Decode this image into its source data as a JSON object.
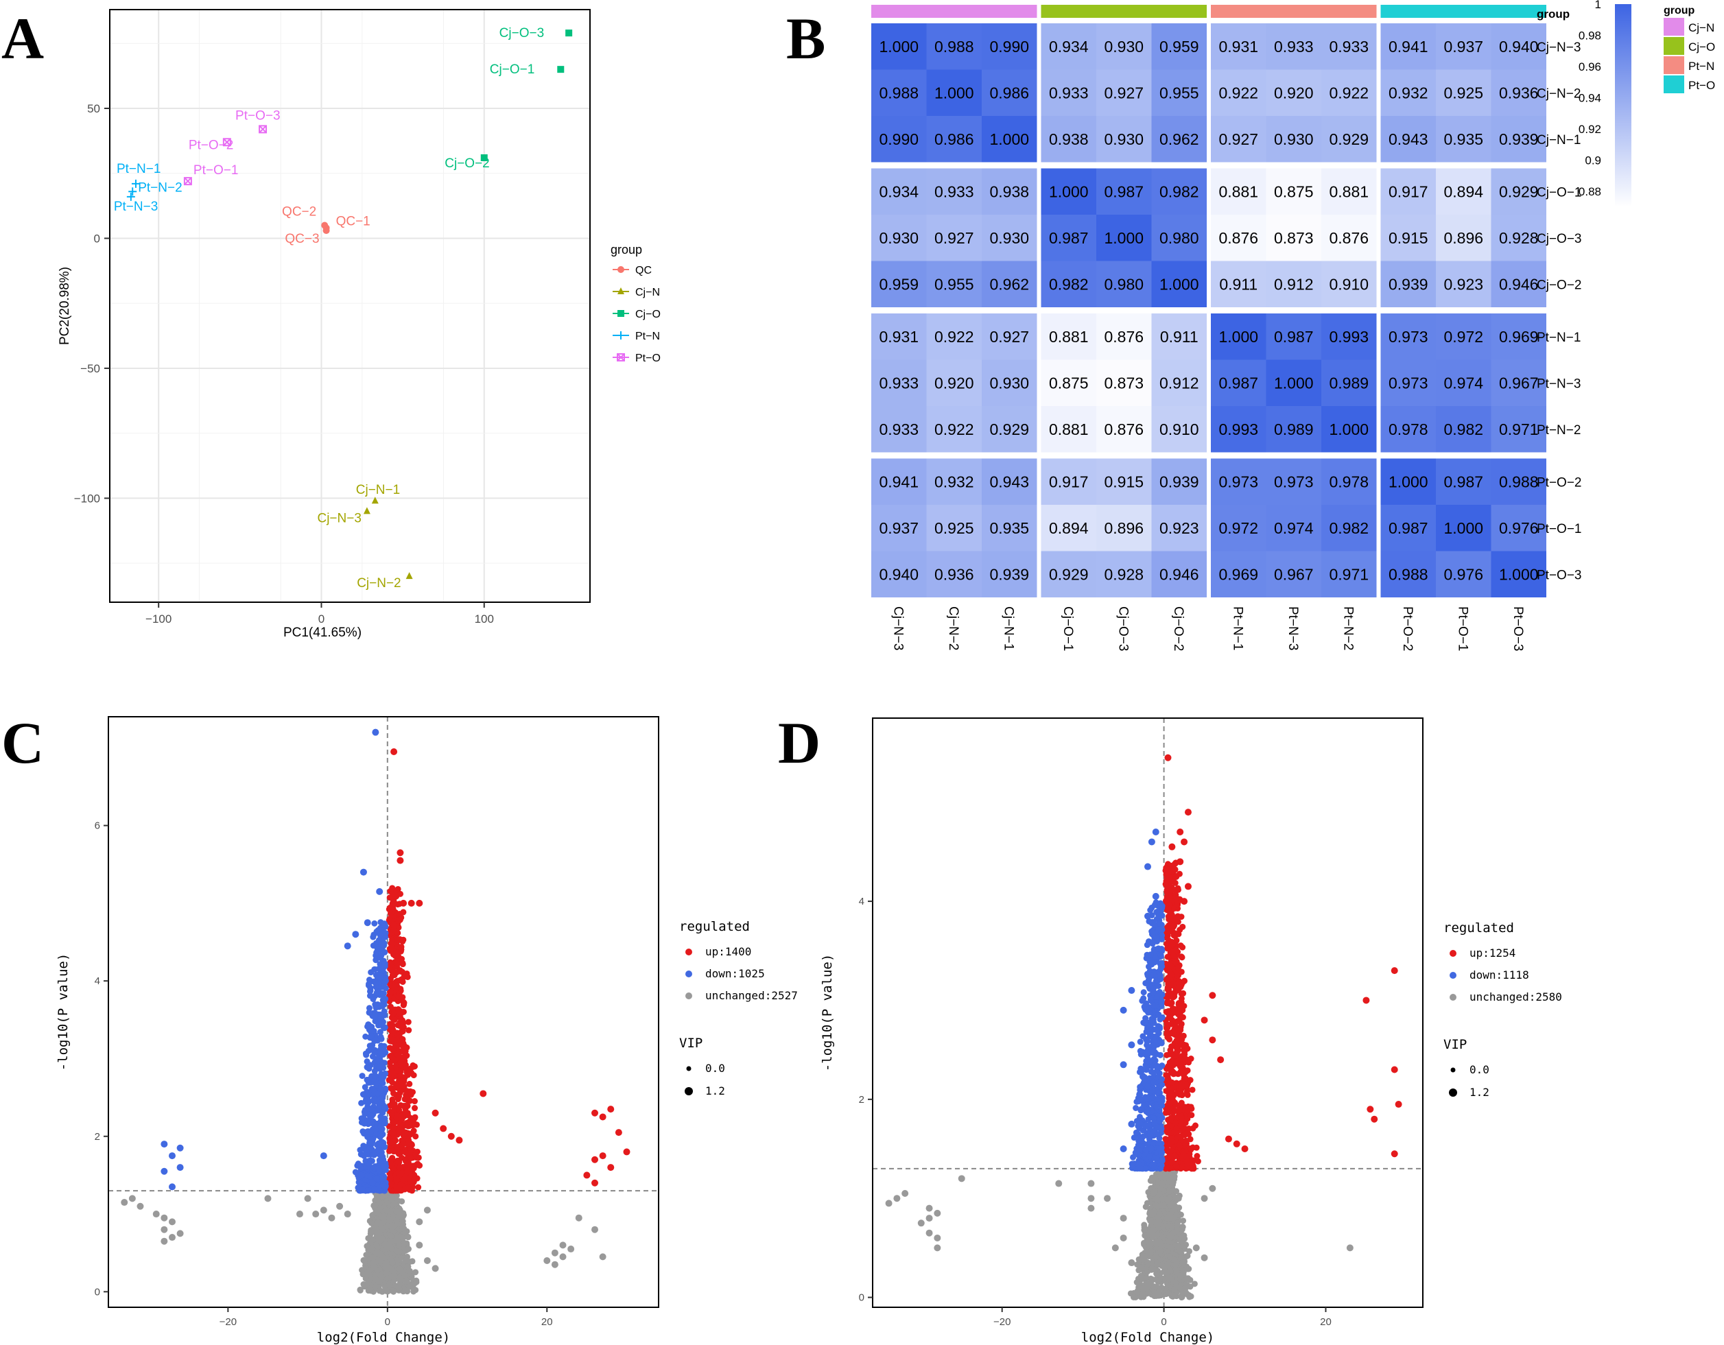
{
  "panels": {
    "a": "A",
    "b": "B",
    "c": "C",
    "d": "D"
  },
  "chart_data": [
    {
      "id": "A",
      "type": "scatter",
      "title": "",
      "xlabel": "PC1(41.65%)",
      "ylabel": "PC2(20.98%)",
      "xlim": [
        -130,
        165
      ],
      "ylim": [
        -140,
        88
      ],
      "xticks": [
        -100,
        0,
        100
      ],
      "yticks": [
        -100,
        -50,
        0,
        50
      ],
      "legend_title": "group",
      "legend_position": "right",
      "series": [
        {
          "name": "QC",
          "color": "#F8766D",
          "marker": "circle",
          "points": [
            {
              "label": "QC-1",
              "x": 3,
              "y": 4
            },
            {
              "label": "QC-2",
              "x": 2,
              "y": 5
            },
            {
              "label": "QC-3",
              "x": 3,
              "y": 3
            }
          ]
        },
        {
          "name": "Cj-N",
          "color": "#A3A500",
          "marker": "triangle",
          "points": [
            {
              "label": "Cj-N-1",
              "x": 33,
              "y": -101
            },
            {
              "label": "Cj-N-3",
              "x": 28,
              "y": -105
            },
            {
              "label": "Cj-N-2",
              "x": 54,
              "y": -130
            }
          ]
        },
        {
          "name": "Cj-O",
          "color": "#00BF7D",
          "marker": "square",
          "points": [
            {
              "label": "Cj-O-3",
              "x": 152,
              "y": 79
            },
            {
              "label": "Cj-O-1",
              "x": 147,
              "y": 65
            },
            {
              "label": "Cj-O-2",
              "x": 100,
              "y": 31
            }
          ]
        },
        {
          "name": "Pt-N",
          "color": "#00B0F6",
          "marker": "plus",
          "points": [
            {
              "label": "Pt-N-1",
              "x": -114,
              "y": 21
            },
            {
              "label": "Pt-N-2",
              "x": -116,
              "y": 18
            },
            {
              "label": "Pt-N-3",
              "x": -117,
              "y": 16
            }
          ]
        },
        {
          "name": "Pt-O",
          "color": "#E76BF3",
          "marker": "x-square",
          "points": [
            {
              "label": "Pt-O-3",
              "x": -36,
              "y": 42
            },
            {
              "label": "Pt-O-2",
              "x": -58,
              "y": 37
            },
            {
              "label": "Pt-O-1",
              "x": -82,
              "y": 22
            }
          ]
        }
      ]
    },
    {
      "id": "B",
      "type": "heatmap",
      "title": "",
      "row_labels": [
        "Cj-N-3",
        "Cj-N-2",
        "Cj-N-1",
        "Cj-O-1",
        "Cj-O-3",
        "Cj-O-2",
        "Pt-N-1",
        "Pt-N-3",
        "Pt-N-2",
        "Pt-O-2",
        "Pt-O-1",
        "Pt-O-3"
      ],
      "col_labels": [
        "Cj-N-3",
        "Cj-N-2",
        "Cj-N-1",
        "Cj-O-1",
        "Cj-O-3",
        "Cj-O-2",
        "Pt-N-1",
        "Pt-N-3",
        "Pt-N-2",
        "Pt-O-2",
        "Pt-O-1",
        "Pt-O-3"
      ],
      "values": [
        [
          "1.000",
          "0.988",
          "0.990",
          "0.934",
          "0.930",
          "0.959",
          "0.931",
          "0.933",
          "0.933",
          "0.941",
          "0.937",
          "0.940"
        ],
        [
          "0.988",
          "1.000",
          "0.986",
          "0.933",
          "0.927",
          "0.955",
          "0.922",
          "0.920",
          "0.922",
          "0.932",
          "0.925",
          "0.936"
        ],
        [
          "0.990",
          "0.986",
          "1.000",
          "0.938",
          "0.930",
          "0.962",
          "0.927",
          "0.930",
          "0.929",
          "0.943",
          "0.935",
          "0.939"
        ],
        [
          "0.934",
          "0.933",
          "0.938",
          "1.000",
          "0.987",
          "0.982",
          "0.881",
          "0.875",
          "0.881",
          "0.917",
          "0.894",
          "0.929"
        ],
        [
          "0.930",
          "0.927",
          "0.930",
          "0.987",
          "1.000",
          "0.980",
          "0.876",
          "0.873",
          "0.876",
          "0.915",
          "0.896",
          "0.928"
        ],
        [
          "0.959",
          "0.955",
          "0.962",
          "0.982",
          "0.980",
          "1.000",
          "0.911",
          "0.912",
          "0.910",
          "0.939",
          "0.923",
          "0.946"
        ],
        [
          "0.931",
          "0.922",
          "0.927",
          "0.881",
          "0.876",
          "0.911",
          "1.000",
          "0.987",
          "0.993",
          "0.973",
          "0.972",
          "0.969"
        ],
        [
          "0.933",
          "0.920",
          "0.930",
          "0.875",
          "0.873",
          "0.912",
          "0.987",
          "1.000",
          "0.989",
          "0.973",
          "0.974",
          "0.967"
        ],
        [
          "0.933",
          "0.922",
          "0.929",
          "0.881",
          "0.876",
          "0.910",
          "0.993",
          "0.989",
          "1.000",
          "0.978",
          "0.982",
          "0.971"
        ],
        [
          "0.941",
          "0.932",
          "0.943",
          "0.917",
          "0.915",
          "0.939",
          "0.973",
          "0.973",
          "0.978",
          "1.000",
          "0.987",
          "0.988"
        ],
        [
          "0.937",
          "0.925",
          "0.935",
          "0.894",
          "0.896",
          "0.923",
          "0.972",
          "0.974",
          "0.982",
          "0.987",
          "1.000",
          "0.976"
        ],
        [
          "0.940",
          "0.936",
          "0.939",
          "0.929",
          "0.928",
          "0.946",
          "0.969",
          "0.967",
          "0.971",
          "0.988",
          "0.976",
          "1.000"
        ]
      ],
      "color_range": [
        0.87,
        1.0
      ],
      "color_low": "#FFFFFF",
      "color_high": "#3D64E3",
      "colorbar_ticks": [
        "1",
        "0.98",
        "0.96",
        "0.94",
        "0.92",
        "0.9",
        "0.88"
      ],
      "group_title": "group",
      "groups": [
        {
          "name": "Cj-N",
          "color": "#E28BEA"
        },
        {
          "name": "Cj-O",
          "color": "#97C21C"
        },
        {
          "name": "Pt-N",
          "color": "#F48C82"
        },
        {
          "name": "Pt-O",
          "color": "#1FCFD4"
        }
      ]
    },
    {
      "id": "C",
      "type": "scatter",
      "title": "",
      "xlabel": "log2(Fold Change)",
      "ylabel": "-log10(P value)",
      "xlim": [
        -35,
        34
      ],
      "ylim": [
        -0.2,
        7.4
      ],
      "xticks": [
        -20,
        0,
        20
      ],
      "yticks": [
        0,
        2,
        4,
        6
      ],
      "threshold_y": 1.3,
      "threshold_x": 0,
      "legend_title": "regulated",
      "legend_items": [
        {
          "label": "up:1400",
          "color": "#E41A1C"
        },
        {
          "label": "down:1025",
          "color": "#4169E1"
        },
        {
          "label": "unchanged:2527",
          "color": "#999999"
        }
      ],
      "size_title": "VIP",
      "size_items": [
        "0.0",
        "1.2"
      ],
      "points": {
        "up": [
          [
            0.8,
            6.95
          ],
          [
            1.6,
            5.65
          ],
          [
            1.6,
            5.55
          ],
          [
            2,
            5
          ],
          [
            3,
            5
          ],
          [
            4,
            5
          ],
          [
            12,
            2.55
          ],
          [
            6,
            2.3
          ],
          [
            7,
            2.1
          ],
          [
            8,
            2
          ],
          [
            9,
            1.95
          ],
          [
            26,
            2.3
          ],
          [
            27,
            2.25
          ],
          [
            28,
            2.35
          ],
          [
            29,
            2.05
          ],
          [
            25,
            1.5
          ],
          [
            26,
            1.7
          ],
          [
            27,
            1.75
          ],
          [
            28,
            1.6
          ],
          [
            30,
            1.8
          ],
          [
            26,
            1.4
          ]
        ],
        "down": [
          [
            -1.5,
            7.2
          ],
          [
            -3,
            5.4
          ],
          [
            -1,
            5.15
          ],
          [
            -2.5,
            4.75
          ],
          [
            -5,
            4.45
          ],
          [
            -4,
            4.6
          ],
          [
            -8,
            1.75
          ],
          [
            -28,
            1.9
          ],
          [
            -26,
            1.85
          ],
          [
            -27,
            1.75
          ],
          [
            -28,
            1.55
          ],
          [
            -26,
            1.6
          ],
          [
            -27,
            1.35
          ]
        ],
        "unchanged": [
          [
            -32,
            1.2
          ],
          [
            -31,
            1.1
          ],
          [
            -33,
            1.15
          ],
          [
            -29,
            1
          ],
          [
            -28,
            0.95
          ],
          [
            -27,
            0.9
          ],
          [
            -28,
            0.8
          ],
          [
            -26,
            0.75
          ],
          [
            -27,
            0.7
          ],
          [
            -28,
            0.65
          ],
          [
            -15,
            1.2
          ],
          [
            -10,
            1.2
          ],
          [
            -9,
            1
          ],
          [
            -8,
            1.05
          ],
          [
            -7,
            0.95
          ],
          [
            -6,
            1.1
          ],
          [
            -5,
            1
          ],
          [
            -11,
            1
          ],
          [
            22,
            0.6
          ],
          [
            21,
            0.5
          ],
          [
            23,
            0.55
          ],
          [
            22,
            0.45
          ],
          [
            21,
            0.35
          ],
          [
            20,
            0.4
          ],
          [
            24,
            0.95
          ],
          [
            26,
            0.8
          ],
          [
            27,
            0.45
          ],
          [
            4,
            0.6
          ],
          [
            5,
            0.4
          ],
          [
            6,
            0.3
          ],
          [
            4,
            0.9
          ],
          [
            5,
            1.05
          ]
        ]
      }
    },
    {
      "id": "D",
      "type": "scatter",
      "title": "",
      "xlabel": "log2(Fold Change)",
      "ylabel": "-log10(P value)",
      "xlim": [
        -36,
        32
      ],
      "ylim": [
        -0.1,
        5.85
      ],
      "xticks": [
        -20,
        0,
        20
      ],
      "yticks": [
        0,
        2,
        4
      ],
      "threshold_y": 1.3,
      "threshold_x": 0,
      "legend_title": "regulated",
      "legend_items": [
        {
          "label": "up:1254",
          "color": "#E41A1C"
        },
        {
          "label": "down:1118",
          "color": "#4169E1"
        },
        {
          "label": "unchanged:2580",
          "color": "#999999"
        }
      ],
      "size_title": "VIP",
      "size_items": [
        "0.0",
        "1.2"
      ],
      "points": {
        "up": [
          [
            0.5,
            5.45
          ],
          [
            3,
            4.9
          ],
          [
            2,
            4.7
          ],
          [
            2.5,
            4.6
          ],
          [
            1,
            4.55
          ],
          [
            2,
            4.4
          ],
          [
            1.5,
            4.25
          ],
          [
            3,
            4.15
          ],
          [
            2.5,
            4
          ],
          [
            6,
            3.05
          ],
          [
            5,
            2.8
          ],
          [
            6,
            2.6
          ],
          [
            7,
            2.4
          ],
          [
            8,
            1.6
          ],
          [
            9,
            1.55
          ],
          [
            10,
            1.5
          ],
          [
            25,
            3
          ],
          [
            28.5,
            3.3
          ],
          [
            28.5,
            2.3
          ],
          [
            29,
            1.95
          ],
          [
            25.5,
            1.9
          ],
          [
            26,
            1.8
          ],
          [
            28.5,
            1.45
          ]
        ],
        "down": [
          [
            -1,
            4.7
          ],
          [
            -1.5,
            4.6
          ],
          [
            -2,
            4.35
          ],
          [
            -1,
            4.05
          ],
          [
            -2,
            3.85
          ],
          [
            -5,
            2.9
          ],
          [
            -4,
            3.1
          ],
          [
            -5,
            2.35
          ],
          [
            -4,
            2.55
          ],
          [
            -3,
            2.05
          ],
          [
            -4,
            1.75
          ],
          [
            -5,
            1.5
          ]
        ],
        "unchanged": [
          [
            -33,
            1.0
          ],
          [
            -34,
            0.95
          ],
          [
            -32,
            1.05
          ],
          [
            -29,
            0.9
          ],
          [
            -28,
            0.85
          ],
          [
            -29,
            0.8
          ],
          [
            -30,
            0.75
          ],
          [
            -29,
            0.65
          ],
          [
            -28,
            0.6
          ],
          [
            -28,
            0.5
          ],
          [
            -25,
            1.2
          ],
          [
            -13,
            1.15
          ],
          [
            -9,
            1.15
          ],
          [
            -9,
            0.9
          ],
          [
            -9,
            1.0
          ],
          [
            -7,
            1.0
          ],
          [
            -5,
            0.8
          ],
          [
            -6,
            0.5
          ],
          [
            -4,
            0.35
          ],
          [
            -5,
            0.6
          ],
          [
            5,
            1.0
          ],
          [
            6,
            1.1
          ],
          [
            4,
            0.5
          ],
          [
            5,
            0.4
          ],
          [
            23,
            0.5
          ]
        ]
      }
    }
  ]
}
